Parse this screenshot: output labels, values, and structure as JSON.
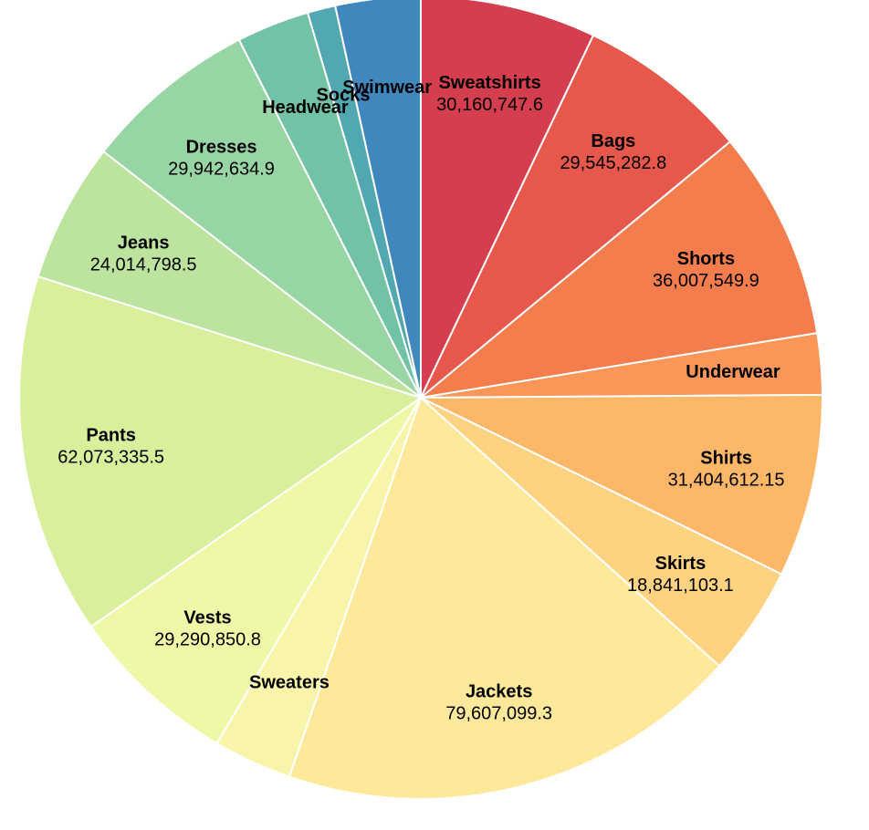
{
  "chart_data": {
    "type": "pie",
    "title": "",
    "slices": [
      {
        "label": "Sweatshirts",
        "value": 30160747.6,
        "value_label": "30,160,747.6",
        "color": "#d53e4f"
      },
      {
        "label": "Bags",
        "value": 29545282.8,
        "value_label": "29,545,282.8",
        "color": "#e5584b"
      },
      {
        "label": "Shorts",
        "value": 36007549.9,
        "value_label": "36,007,549.9",
        "color": "#f47d4d"
      },
      {
        "label": "Underwear",
        "value": 10500000,
        "value_label": "",
        "color": "#f99658"
      },
      {
        "label": "Shirts",
        "value": 31404612.15,
        "value_label": "31,404,612.15",
        "color": "#fdb768"
      },
      {
        "label": "Skirts",
        "value": 18841103.1,
        "value_label": "18,841,103.1",
        "color": "#fdd280"
      },
      {
        "label": "Jackets",
        "value": 79607099.3,
        "value_label": "79,607,099.3",
        "color": "#fee89a"
      },
      {
        "label": "Sweaters",
        "value": 13500000,
        "value_label": "",
        "color": "#f8f5ab"
      },
      {
        "label": "Vests",
        "value": 29290850.8,
        "value_label": "29,290,850.8",
        "color": "#eff8a6"
      },
      {
        "label": "Pants",
        "value": 62073335.5,
        "value_label": "62,073,335.5",
        "color": "#d8ef9b"
      },
      {
        "label": "Jeans",
        "value": 24014798.5,
        "value_label": "24,014,798.5",
        "color": "#bce49e"
      },
      {
        "label": "Dresses",
        "value": 29942634.9,
        "value_label": "29,942,634.9",
        "color": "#98d5a4"
      },
      {
        "label": "Headwear",
        "value": 12500000,
        "value_label": "",
        "color": "#72c2a6"
      },
      {
        "label": "Socks",
        "value": 4800000,
        "value_label": "",
        "color": "#51a8b0"
      },
      {
        "label": "Swimwear",
        "value": 14600000,
        "value_label": "",
        "color": "#3f87bc"
      }
    ]
  }
}
